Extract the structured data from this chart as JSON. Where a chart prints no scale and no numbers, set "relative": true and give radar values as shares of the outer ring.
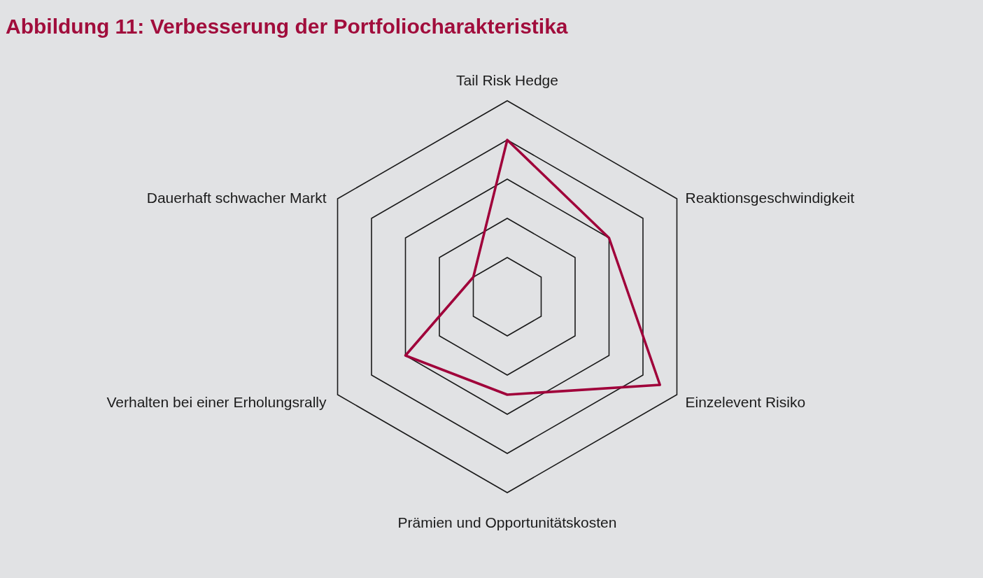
{
  "chart_data": {
    "type": "radar",
    "title": "Abbildung 11: Verbesserung der Portfoliocharakteristika",
    "categories": [
      "Tail Risk Hedge",
      "Reaktionsgeschwindigkeit",
      "Einzelevent Risiko",
      "Prämien und Opportunitätskosten",
      "Verhalten bei einer Erholungsrally",
      "Dauerhaft schwacher Markt"
    ],
    "series": [
      {
        "color": "#a0003a",
        "values": [
          0.8,
          0.6,
          0.9,
          0.5,
          0.6,
          0.2
        ]
      }
    ],
    "relative": true,
    "grid": true
  }
}
